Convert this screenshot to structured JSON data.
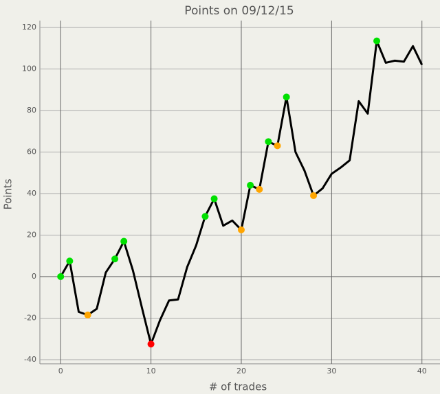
{
  "chart_data": {
    "type": "line",
    "title": "Points on 09/12/15",
    "x_label": "# of trades",
    "y_label": "Points",
    "x": [
      0,
      1,
      2,
      3,
      4,
      5,
      6,
      7,
      8,
      9,
      10,
      11,
      12,
      13,
      14,
      15,
      16,
      17,
      18,
      19,
      20,
      21,
      22,
      23,
      24,
      25,
      26,
      27,
      28,
      29,
      30,
      31,
      32,
      33,
      34,
      35,
      36,
      37,
      38,
      39,
      40
    ],
    "series": [
      {
        "color": "#000000",
        "values": [
          0,
          7.5,
          -17,
          -18.5,
          -15.5,
          2,
          8.5,
          17,
          3,
          -15,
          -32.5,
          -21,
          -11.5,
          -11,
          4.5,
          15,
          29,
          37.5,
          24.5,
          27,
          22.5,
          44,
          42,
          65,
          63,
          86.5,
          60,
          51,
          39,
          42.5,
          49.5,
          52.5,
          56,
          84.5,
          78.5,
          113.5,
          103,
          104,
          103.5,
          111,
          102
        ]
      }
    ],
    "markers": [
      {
        "color": "#00e000",
        "x": [
          0,
          1,
          6,
          7,
          16,
          17,
          21,
          23,
          25,
          35
        ],
        "values": [
          0,
          7.5,
          8.5,
          17,
          29,
          37.5,
          44,
          65,
          86.5,
          113.5
        ]
      },
      {
        "color": "#ffa500",
        "x": [
          3,
          20,
          22,
          24,
          28
        ],
        "values": [
          -18.5,
          22.5,
          42,
          63,
          39
        ]
      },
      {
        "color": "#ff0000",
        "x": [
          10
        ],
        "values": [
          -32.5
        ]
      }
    ],
    "xlim": [
      -2.3,
      42
    ],
    "ylim": [
      -42,
      123.3
    ],
    "xticks": [
      0,
      10,
      20,
      30,
      40
    ],
    "yticks": [
      -40,
      -20,
      0,
      20,
      40,
      60,
      80,
      100,
      120
    ],
    "grid": true
  }
}
